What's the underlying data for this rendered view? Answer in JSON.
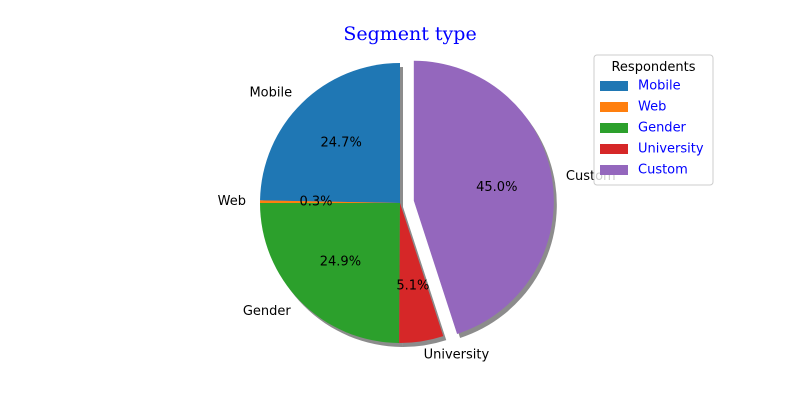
{
  "chart_data": {
    "type": "pie",
    "title": "Segment type",
    "title_color": "#0000ff",
    "categories": [
      "Mobile",
      "Web",
      "Gender",
      "University",
      "Custom"
    ],
    "values": [
      24.7,
      0.3,
      24.9,
      5.1,
      45.0
    ],
    "percent_labels": [
      "24.7%",
      "0.3%",
      "24.9%",
      "5.1%",
      "45.0%"
    ],
    "colors": [
      "#1f77b4",
      "#ff7f0e",
      "#2ca02c",
      "#d62728",
      "#9467bd"
    ],
    "exploded": [
      "Custom"
    ],
    "shadow": true,
    "start_angle_deg": 90,
    "direction": "counterclockwise",
    "legend": {
      "title": "Respondents",
      "placement": "upper-right",
      "text_color": "#0000ff",
      "entries": [
        "Mobile",
        "Web",
        "Gender",
        "University",
        "Custom"
      ]
    }
  }
}
